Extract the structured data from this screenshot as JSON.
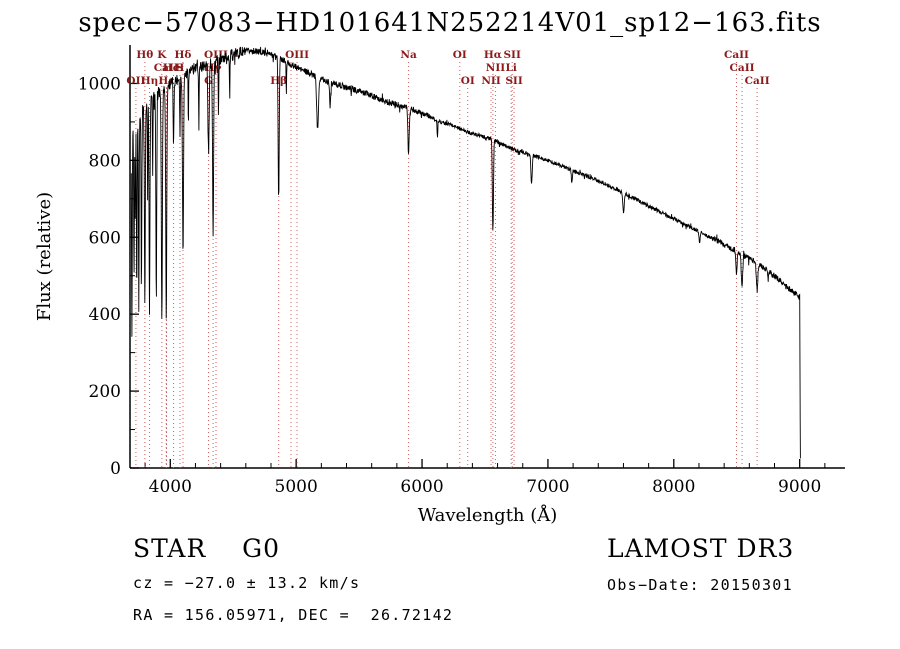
{
  "footer": {
    "object_class": "STAR    G0",
    "survey": "LAMOST DR3",
    "velocity": "cz = −27.0 ± 13.2 km/s",
    "obs_date": "Obs−Date: 20150301",
    "coordinates": "RA = 156.05971, DEC =  26.72142"
  },
  "chart_data": {
    "type": "line",
    "title": "spec−57083−HD101641N252214V01_sp12−163.fits",
    "xlabel": "Wavelength (Å)",
    "ylabel": "Flux (relative)",
    "xlim": [
      3680,
      9360
    ],
    "ylim": [
      0,
      1100
    ],
    "x_ticks": [
      4000,
      5000,
      6000,
      7000,
      8000,
      9000
    ],
    "y_ticks": [
      0,
      200,
      400,
      600,
      800,
      1000
    ],
    "x_minor_step": 200,
    "y_minor_step": 100,
    "grid": false,
    "trace_color": "#000000",
    "marker_line_color": "#cc6060",
    "marker_label_color": "#8b1a1a",
    "wavelength_range": [
      3690,
      9002
    ],
    "continuum": [
      [
        3690,
        870
      ],
      [
        3750,
        920
      ],
      [
        3850,
        960
      ],
      [
        3950,
        990
      ],
      [
        4050,
        1010
      ],
      [
        4150,
        1030
      ],
      [
        4250,
        1045
      ],
      [
        4350,
        1055
      ],
      [
        4450,
        1070
      ],
      [
        4550,
        1080
      ],
      [
        4650,
        1085
      ],
      [
        4750,
        1080
      ],
      [
        4850,
        1070
      ],
      [
        4950,
        1050
      ],
      [
        5050,
        1035
      ],
      [
        5150,
        1020
      ],
      [
        5250,
        1005
      ],
      [
        5350,
        995
      ],
      [
        5450,
        985
      ],
      [
        5550,
        975
      ],
      [
        5650,
        960
      ],
      [
        5750,
        950
      ],
      [
        5850,
        940
      ],
      [
        5950,
        930
      ],
      [
        6050,
        915
      ],
      [
        6150,
        900
      ],
      [
        6250,
        890
      ],
      [
        6350,
        875
      ],
      [
        6450,
        865
      ],
      [
        6550,
        855
      ],
      [
        6650,
        840
      ],
      [
        6750,
        825
      ],
      [
        6850,
        815
      ],
      [
        7000,
        800
      ],
      [
        7150,
        780
      ],
      [
        7300,
        760
      ],
      [
        7450,
        740
      ],
      [
        7600,
        715
      ],
      [
        7750,
        690
      ],
      [
        7900,
        665
      ],
      [
        8050,
        640
      ],
      [
        8200,
        615
      ],
      [
        8350,
        590
      ],
      [
        8500,
        565
      ],
      [
        8650,
        535
      ],
      [
        8800,
        500
      ],
      [
        8900,
        470
      ],
      [
        8980,
        450
      ],
      [
        9010,
        440
      ]
    ],
    "absorption_lines": [
      {
        "c": 3695,
        "d": 0.62,
        "w": 4
      },
      {
        "c": 3712,
        "d": 0.45,
        "w": 4
      },
      {
        "c": 3722,
        "d": 0.3,
        "w": 3
      },
      {
        "c": 3734,
        "d": 0.5,
        "w": 4
      },
      {
        "c": 3750,
        "d": 0.55,
        "w": 4
      },
      {
        "c": 3771,
        "d": 0.5,
        "w": 4
      },
      {
        "c": 3798,
        "d": 0.55,
        "w": 5
      },
      {
        "c": 3820,
        "d": 0.25,
        "w": 3
      },
      {
        "c": 3835,
        "d": 0.58,
        "w": 5
      },
      {
        "c": 3860,
        "d": 0.2,
        "w": 3
      },
      {
        "c": 3889,
        "d": 0.55,
        "w": 5
      },
      {
        "c": 3933,
        "d": 0.62,
        "w": 6
      },
      {
        "c": 3968,
        "d": 0.6,
        "w": 6
      },
      {
        "c": 4026,
        "d": 0.18,
        "w": 4
      },
      {
        "c": 4077,
        "d": 0.15,
        "w": 3
      },
      {
        "c": 4101,
        "d": 0.45,
        "w": 6
      },
      {
        "c": 4144,
        "d": 0.12,
        "w": 3
      },
      {
        "c": 4227,
        "d": 0.15,
        "w": 3
      },
      {
        "c": 4304,
        "d": 0.22,
        "w": 7
      },
      {
        "c": 4340,
        "d": 0.42,
        "w": 6
      },
      {
        "c": 4383,
        "d": 0.15,
        "w": 3
      },
      {
        "c": 4472,
        "d": 0.1,
        "w": 3
      },
      {
        "c": 4861,
        "d": 0.34,
        "w": 6
      },
      {
        "c": 4922,
        "d": 0.08,
        "w": 3
      },
      {
        "c": 5170,
        "d": 0.13,
        "w": 10
      },
      {
        "c": 5270,
        "d": 0.06,
        "w": 6
      },
      {
        "c": 5893,
        "d": 0.13,
        "w": 7
      },
      {
        "c": 6122,
        "d": 0.05,
        "w": 4
      },
      {
        "c": 6563,
        "d": 0.28,
        "w": 6
      },
      {
        "c": 6870,
        "d": 0.09,
        "w": 7
      },
      {
        "c": 7190,
        "d": 0.04,
        "w": 6
      },
      {
        "c": 7600,
        "d": 0.07,
        "w": 8
      },
      {
        "c": 8205,
        "d": 0.05,
        "w": 6
      },
      {
        "c": 8498,
        "d": 0.1,
        "w": 7
      },
      {
        "c": 8542,
        "d": 0.15,
        "w": 8
      },
      {
        "c": 8662,
        "d": 0.13,
        "w": 8
      },
      {
        "c": 8750,
        "d": 0.05,
        "w": 4
      }
    ],
    "noise": {
      "blue": 15,
      "mid": 8,
      "red": 5,
      "far_red": 8
    },
    "spectral_lines": [
      {
        "label": "Hθ",
        "wavelength": 3798,
        "row": 1
      },
      {
        "label": "K",
        "wavelength": 3933,
        "row": 1
      },
      {
        "label": "Hδ",
        "wavelength": 4101,
        "row": 1
      },
      {
        "label": "OIII",
        "wavelength": 4363,
        "row": 1
      },
      {
        "label": "",
        "wavelength": 4959,
        "row": 1
      },
      {
        "label": "OIII",
        "wavelength": 5007,
        "row": 1
      },
      {
        "label": "Na",
        "wavelength": 5893,
        "row": 1
      },
      {
        "label": "OI",
        "wavelength": 6300,
        "row": 1
      },
      {
        "label": "Hα",
        "wavelength": 6563,
        "row": 1
      },
      {
        "label": "SII",
        "wavelength": 6716,
        "row": 1
      },
      {
        "label": "CaII",
        "wavelength": 8498,
        "row": 1
      },
      {
        "label": "CaII",
        "wavelength": 3968,
        "row": 2
      },
      {
        "label": "HeI",
        "wavelength": 4026,
        "row": 2
      },
      {
        "label": "S",
        "wavelength": 4077,
        "row": 2
      },
      {
        "label": "Hγ",
        "wavelength": 4340,
        "row": 2
      },
      {
        "label": "NII",
        "wavelength": 6583,
        "row": 2
      },
      {
        "label": "Li",
        "wavelength": 6708,
        "row": 2
      },
      {
        "label": "CaII",
        "wavelength": 8542,
        "row": 2
      },
      {
        "label": "OII",
        "wavelength": 3727,
        "row": 3
      },
      {
        "label": "Hη",
        "wavelength": 3835,
        "row": 3
      },
      {
        "label": "Hε",
        "wavelength": 3970,
        "row": 3
      },
      {
        "label": "G",
        "wavelength": 4304,
        "row": 3
      },
      {
        "label": "Hβ",
        "wavelength": 4861,
        "row": 3
      },
      {
        "label": "OI",
        "wavelength": 6363,
        "row": 3
      },
      {
        "label": "NII",
        "wavelength": 6548,
        "row": 3
      },
      {
        "label": "SII",
        "wavelength": 6731,
        "row": 3
      },
      {
        "label": "CaII",
        "wavelength": 8662,
        "row": 3
      }
    ]
  }
}
